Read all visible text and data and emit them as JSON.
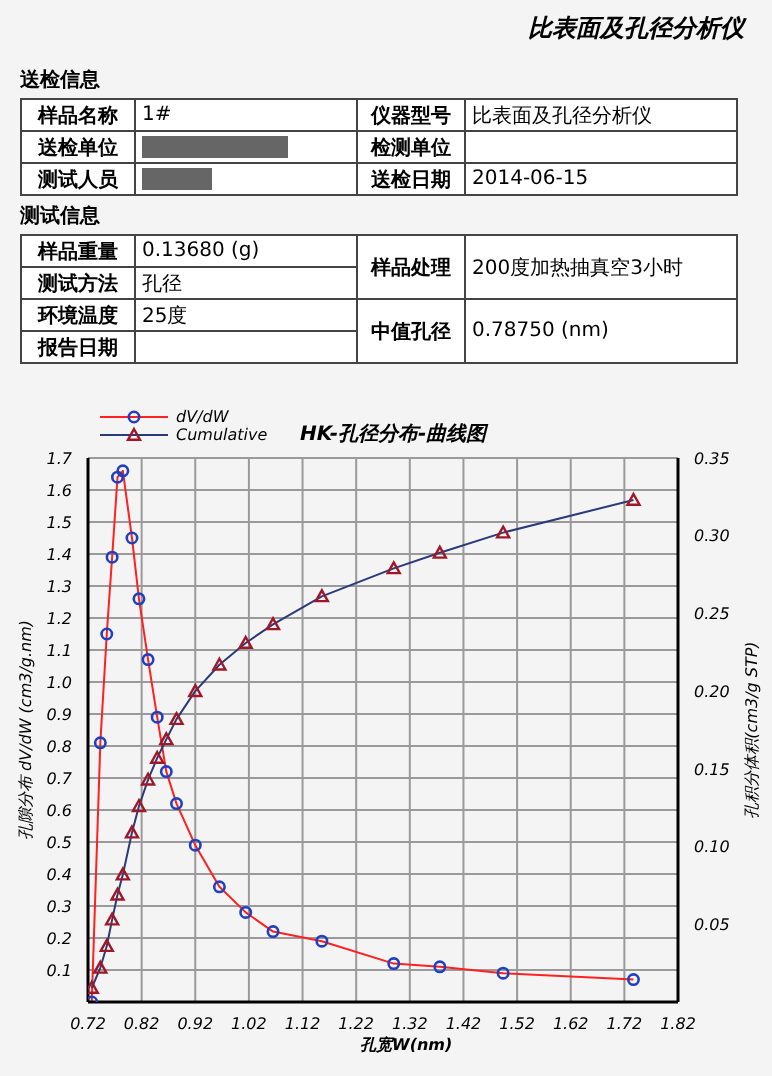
{
  "chart_data": {
    "type": "line",
    "title": "HK-孔径分布-曲线图",
    "xlabel": "孔宽W(nm)",
    "ylabel": "孔隙分布 dV/dW (cm3/g.nm)",
    "y2label": "孔积分体积(cm3/g STP)",
    "annotations": [
      "比表面及孔径分析仪",
      "送检信息",
      "样品名称",
      "1#",
      "仪器型号",
      "比表面及孔径分析仪",
      "送检单位",
      "检测单位",
      "测试人员",
      "送检日期",
      "2014-06-15",
      "测试信息",
      "样品重量",
      "0.13680 (g)",
      "样品处理",
      "200度加热抽真空3小时",
      "测试方法",
      "孔径",
      "环境温度",
      "25度",
      "中值孔径",
      "0.78750 (nm)",
      "报告日期"
    ],
    "x": [
      0.727,
      0.743,
      0.755,
      0.765,
      0.775,
      0.785,
      0.802,
      0.815,
      0.832,
      0.849,
      0.866,
      0.885,
      0.92,
      0.965,
      1.014,
      1.065,
      1.156,
      1.29,
      1.376,
      1.494,
      1.737
    ],
    "series": [
      {
        "name": "dV/dW",
        "color": "#ff2020",
        "marker": "circle",
        "values": [
          0,
          0.81,
          1.15,
          1.39,
          1.64,
          1.66,
          1.45,
          1.26,
          1.07,
          0.89,
          0.72,
          0.62,
          0.49,
          0.36,
          0.28,
          0.22,
          0.19,
          0.12,
          0.11,
          0.09,
          0.07
        ]
      },
      {
        "name": "Cumulative",
        "color": "#2a3a7a",
        "marker": "triangle",
        "axis": "y2",
        "values": [
          0.009,
          0.022,
          0.036,
          0.053,
          0.069,
          0.082,
          0.109,
          0.126,
          0.143,
          0.157,
          0.169,
          0.182,
          0.2,
          0.217,
          0.231,
          0.243,
          0.261,
          0.279,
          0.289,
          0.302,
          0.323
        ]
      }
    ],
    "xlim": [
      0.72,
      1.82
    ],
    "xticks": [
      0.72,
      0.82,
      0.92,
      1.02,
      1.12,
      1.22,
      1.32,
      1.42,
      1.52,
      1.62,
      1.72,
      1.82
    ],
    "ylim": [
      0,
      1.7
    ],
    "yticks": [
      {
        "value": 0,
        "label": null
      },
      0.1,
      0.2,
      0.3,
      0.4,
      0.5,
      0.6,
      0.7,
      0.8,
      0.9,
      {
        "value": 1,
        "label": "1.0"
      },
      1.1,
      1.2,
      1.3,
      1.4,
      1.5,
      1.6,
      1.7
    ],
    "y2lim": [
      0,
      0.35
    ],
    "y2ticks": [
      {
        "value": 0,
        "label": null
      },
      0.05,
      {
        "value": 0.1,
        "label": "0.10"
      },
      0.15,
      {
        "value": 0.2,
        "label": "0.20"
      },
      0.25,
      {
        "value": 0.3,
        "label": "0.30"
      },
      0.35
    ],
    "grid": true,
    "legend": "top left"
  }
}
